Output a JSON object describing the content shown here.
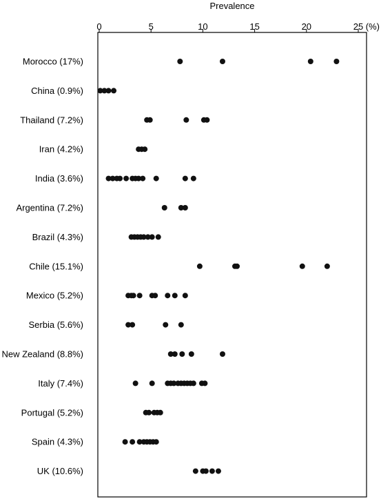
{
  "chart_data": {
    "type": "scatter",
    "xlabel": "Prevalence",
    "xunit": "(%)",
    "xlim": [
      0,
      25
    ],
    "xticks": [
      "0",
      "5",
      "10",
      "15",
      "20",
      "25"
    ],
    "xtick_values": [
      0,
      5,
      10,
      15,
      20,
      25
    ],
    "axis_position": "top",
    "grid": false,
    "categories": [
      "Morocco (17%)",
      "China (0.9%)",
      "Thailand (7.2%)",
      "Iran (4.2%)",
      "India (3.6%)",
      "Argentina (7.2%)",
      "Brazil (4.3%)",
      "Chile (15.1%)",
      "Mexico (5.2%)",
      "Serbia (5.6%)",
      "New Zealand (8.8%)",
      "Italy (7.4%)",
      "Portugal (5.2%)",
      "Spain (4.3%)",
      "UK (10.6%)"
    ],
    "series": [
      {
        "values": [
          7.8,
          11.9,
          20.4,
          22.9
        ]
      },
      {
        "values": [
          0.1,
          0.5,
          0.9,
          1.4
        ]
      },
      {
        "values": [
          4.6,
          4.9,
          8.4,
          10.1,
          10.4
        ]
      },
      {
        "values": [
          3.8,
          4.1,
          4.4
        ]
      },
      {
        "values": [
          0.9,
          1.3,
          1.7,
          2.0,
          2.6,
          3.2,
          3.5,
          3.8,
          4.2,
          5.5,
          8.3,
          9.1
        ]
      },
      {
        "values": [
          6.3,
          7.9,
          8.3
        ]
      },
      {
        "values": [
          3.1,
          3.4,
          3.7,
          4.0,
          4.3,
          4.7,
          5.1,
          5.7
        ]
      },
      {
        "values": [
          9.7,
          13.1,
          13.3,
          19.6,
          22.0
        ]
      },
      {
        "values": [
          2.8,
          3.1,
          3.3,
          3.9,
          5.1,
          5.4,
          6.6,
          7.3,
          8.3
        ]
      },
      {
        "values": [
          2.8,
          3.2,
          6.4,
          7.9
        ]
      },
      {
        "values": [
          6.9,
          7.3,
          8.0,
          8.9,
          11.9
        ]
      },
      {
        "values": [
          3.5,
          5.1,
          6.6,
          6.9,
          7.2,
          7.6,
          7.9,
          8.2,
          8.5,
          8.8,
          9.1,
          9.9,
          10.2
        ]
      },
      {
        "values": [
          4.5,
          4.8,
          5.3,
          5.6,
          5.9
        ]
      },
      {
        "values": [
          2.5,
          3.2,
          3.9,
          4.3,
          4.6,
          4.9,
          5.2,
          5.5
        ]
      },
      {
        "values": [
          9.3,
          10.0,
          10.3,
          10.9,
          11.5
        ]
      }
    ]
  }
}
